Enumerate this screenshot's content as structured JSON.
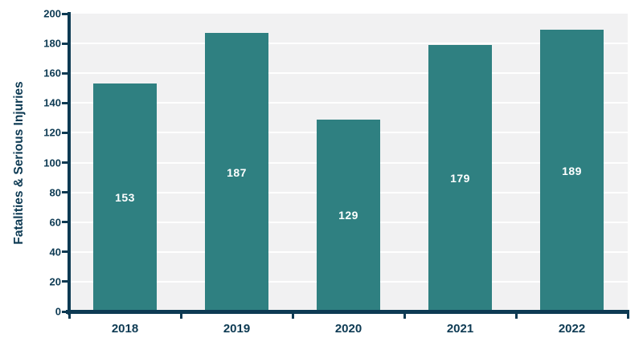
{
  "chart_data": {
    "type": "bar",
    "categories": [
      "2018",
      "2019",
      "2020",
      "2021",
      "2022"
    ],
    "values": [
      153,
      187,
      129,
      179,
      189
    ],
    "series_label_format": "centered-white-inside-bar",
    "title": "",
    "xlabel": "",
    "ylabel": "Fatalities & Serious Injuries",
    "ylim": [
      0,
      200
    ],
    "yticks": [
      0,
      20,
      40,
      60,
      80,
      100,
      120,
      140,
      160,
      180,
      200
    ],
    "grid": true,
    "legend": false,
    "colors": {
      "bar": "#2F8081",
      "axis": "#0D3A53",
      "tick_text": "#0D3A53",
      "plot_background": "#F1F1F2",
      "gridline": "#FFFFFF",
      "bar_label_text": "#FFFFFF",
      "page_background": "#FFFFFF"
    }
  }
}
